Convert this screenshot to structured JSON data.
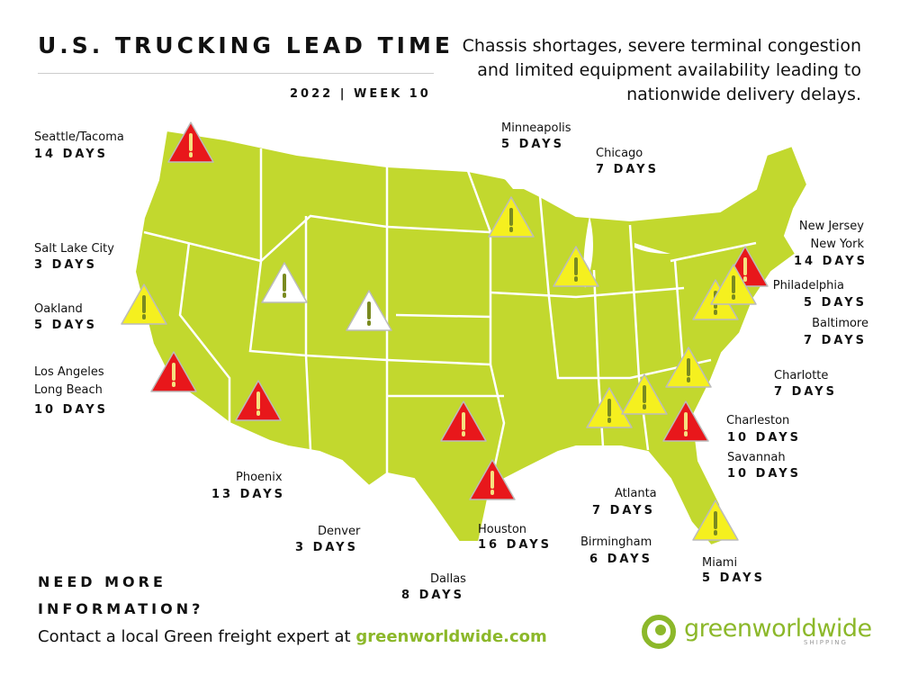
{
  "header": {
    "title": "U.S. TRUCKING LEAD TIME",
    "subtitle": "2022 | WEEK 10",
    "description": "Chassis shortages, severe terminal congestion and limited equipment availability leading to nationwide delivery delays."
  },
  "locations": [
    {
      "name": "Seattle/Tacoma",
      "lead_time": "14 DAYS"
    },
    {
      "name": "Salt Lake City",
      "lead_time": "3 DAYS"
    },
    {
      "name": "Oakland",
      "lead_time": "5 DAYS"
    },
    {
      "name": "Los Angeles\nLong Beach",
      "lead_time": "10 DAYS"
    },
    {
      "name": "Phoenix",
      "lead_time": "13 DAYS"
    },
    {
      "name": "Denver",
      "lead_time": "3 DAYS"
    },
    {
      "name": "Dallas",
      "lead_time": "8 DAYS"
    },
    {
      "name": "Houston",
      "lead_time": "16 DAYS"
    },
    {
      "name": "Minneapolis",
      "lead_time": "5 DAYS"
    },
    {
      "name": "Chicago",
      "lead_time": "7 DAYS"
    },
    {
      "name": "Atlanta",
      "lead_time": "7 DAYS"
    },
    {
      "name": "Birmingham",
      "lead_time": "6 DAYS"
    },
    {
      "name": "Miami",
      "lead_time": "5 DAYS"
    },
    {
      "name": "New Jersey\nNew York",
      "lead_time": "14 DAYS"
    },
    {
      "name": "Philadelphia",
      "lead_time": "5 DAYS"
    },
    {
      "name": "Baltimore",
      "lead_time": "7 DAYS"
    },
    {
      "name": "Charlotte",
      "lead_time": "7 DAYS"
    },
    {
      "name": "Charleston",
      "lead_time": "10 DAYS"
    },
    {
      "name": "Savannah",
      "lead_time": "10 DAYS"
    }
  ],
  "footer": {
    "cta": "NEED MORE INFORMATION?",
    "contact": "Contact a local Green freight expert at",
    "link": "greenworldwide.com",
    "logo": "greenworldwide",
    "logo_sub": "SHIPPING"
  }
}
